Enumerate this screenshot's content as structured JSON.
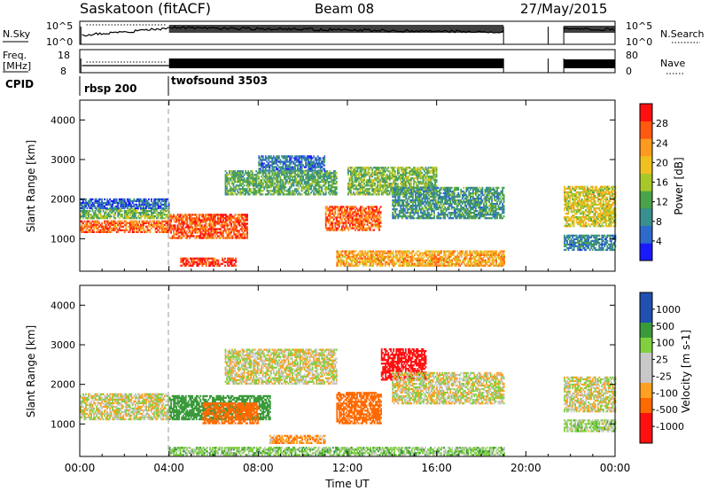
{
  "header": {
    "station": "Saskatoon (fitACF)",
    "beam": "Beam 08",
    "date": "27/May/2015"
  },
  "panels": {
    "nsky": {
      "left_label": "N.Sky",
      "left_ticks": [
        "10^5",
        "10^0"
      ],
      "right_ticks": [
        "10^5",
        "10^0"
      ],
      "right_label": "N.Search"
    },
    "freq": {
      "left_label_1": "Freq.",
      "left_label_2": "[MHz]",
      "left_ticks": [
        "18",
        "8"
      ],
      "right_ticks": [
        "80",
        "0"
      ],
      "right_label": "Nave"
    },
    "cpid": {
      "label": "CPID",
      "modes": [
        {
          "name": "rbsp 200",
          "start_hour": 0
        },
        {
          "name": "twofsound 3503",
          "start_hour": 4
        }
      ]
    }
  },
  "colors": {
    "power": [
      "#1a1aff",
      "#2d6acc",
      "#3a8f8f",
      "#4aa34a",
      "#a8c82a",
      "#f0c020",
      "#ff9a20",
      "#ff5a10",
      "#ff1010"
    ],
    "velocity": [
      "#ff1010",
      "#ff6a00",
      "#ffa020",
      "#c8c8c8",
      "#c8c8c8",
      "#80d040",
      "#3a9a3a",
      "#2050b0"
    ]
  },
  "chart_data": [
    {
      "type": "heatmap",
      "title": "Power",
      "ylabel": "Slant Range [km]",
      "y_ticks": [
        "1000",
        "2000",
        "3000",
        "4000"
      ],
      "ylim": [
        180,
        4500
      ],
      "colorbar_label": "Power [dB]",
      "colorbar_ticks": [
        "4",
        "8",
        "12",
        "16",
        "20",
        "24",
        "28"
      ],
      "colorbar_range": [
        0,
        32
      ],
      "features": [
        {
          "t0": 0.0,
          "t1": 4.0,
          "r0": 1150,
          "r1": 1450,
          "v": 26
        },
        {
          "t0": 0.0,
          "t1": 4.0,
          "r0": 1500,
          "r1": 1750,
          "v": 14
        },
        {
          "t0": 0.0,
          "t1": 4.0,
          "r0": 1750,
          "r1": 2000,
          "v": 6
        },
        {
          "t0": 4.0,
          "t1": 7.5,
          "r0": 1000,
          "r1": 1600,
          "v": 27
        },
        {
          "t0": 4.5,
          "t1": 7.0,
          "r0": 300,
          "r1": 500,
          "v": 29
        },
        {
          "t0": 6.5,
          "t1": 11.5,
          "r0": 2100,
          "r1": 2700,
          "v": 12
        },
        {
          "t0": 8.0,
          "t1": 11.0,
          "r0": 2700,
          "r1": 3100,
          "v": 7
        },
        {
          "t0": 11.0,
          "t1": 13.5,
          "r0": 1200,
          "r1": 1800,
          "v": 26
        },
        {
          "t0": 11.5,
          "t1": 19.0,
          "r0": 300,
          "r1": 700,
          "v": 22
        },
        {
          "t0": 12.0,
          "t1": 16.0,
          "r0": 2100,
          "r1": 2800,
          "v": 14
        },
        {
          "t0": 14.0,
          "t1": 19.0,
          "r0": 1500,
          "r1": 2300,
          "v": 10
        },
        {
          "t0": 21.7,
          "t1": 24.0,
          "r0": 1300,
          "r1": 2300,
          "v": 18
        },
        {
          "t0": 21.7,
          "t1": 24.0,
          "r0": 700,
          "r1": 1100,
          "v": 8
        }
      ]
    },
    {
      "type": "heatmap",
      "title": "Velocity",
      "ylabel": "Slant Range [km]",
      "y_ticks": [
        "1000",
        "2000",
        "3000",
        "4000"
      ],
      "ylim": [
        180,
        4500
      ],
      "colorbar_label": "Velocity [m s-1]",
      "colorbar_ticks": [
        "1000",
        "500",
        "100",
        "25",
        "-25",
        "-100",
        "-500",
        "-1000"
      ],
      "xlabel": "Time UT",
      "x_ticks": [
        "00:00",
        "04:00",
        "08:00",
        "12:00",
        "16:00",
        "20:00",
        "00:00"
      ],
      "xlim": [
        0,
        24
      ],
      "features": [
        {
          "t0": 0.0,
          "t1": 4.0,
          "r0": 1100,
          "r1": 1750,
          "v": 0
        },
        {
          "t0": 4.0,
          "t1": 8.5,
          "r0": 1100,
          "r1": 1700,
          "v": 300
        },
        {
          "t0": 5.5,
          "t1": 8.0,
          "r0": 1000,
          "r1": 1500,
          "v": -200
        },
        {
          "t0": 6.5,
          "t1": 11.5,
          "r0": 2000,
          "r1": 2900,
          "v": 0
        },
        {
          "t0": 8.5,
          "t1": 11.0,
          "r0": 500,
          "r1": 700,
          "v": -80
        },
        {
          "t0": 11.5,
          "t1": 13.5,
          "r0": 1000,
          "r1": 1800,
          "v": -400
        },
        {
          "t0": 13.5,
          "t1": 15.5,
          "r0": 2100,
          "r1": 2900,
          "v": -600
        },
        {
          "t0": 14.0,
          "t1": 19.0,
          "r0": 1500,
          "r1": 2300,
          "v": 0
        },
        {
          "t0": 4.0,
          "t1": 19.0,
          "r0": 200,
          "r1": 400,
          "v": 60
        },
        {
          "t0": 21.7,
          "t1": 24.0,
          "r0": 1300,
          "r1": 2200,
          "v": 0
        },
        {
          "t0": 21.7,
          "t1": 24.0,
          "r0": 800,
          "r1": 1100,
          "v": 40
        }
      ]
    }
  ]
}
